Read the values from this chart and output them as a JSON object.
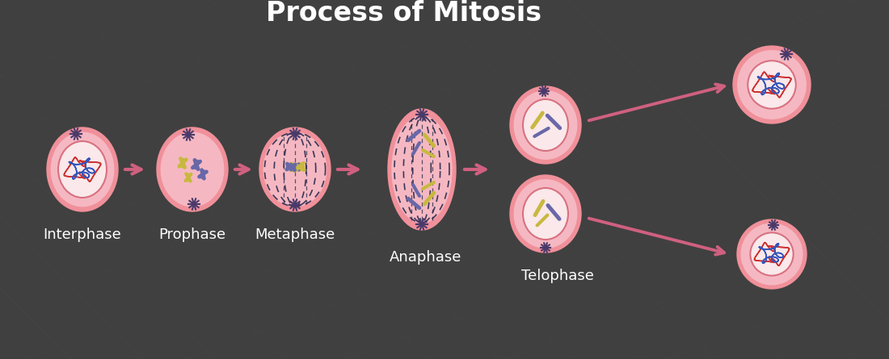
{
  "title": "Process of Mitosis",
  "title_color": "#FFFFFF",
  "title_fontsize": 24,
  "title_fontweight": "bold",
  "background_color": "#404040",
  "stages": [
    "Interphase",
    "Prophase",
    "Metaphase",
    "Anaphase",
    "Telophase"
  ],
  "cell_outer_color": "#f0909a",
  "cell_inner_color": "#f5b8c2",
  "cell_cytoplasm": "#f5b8c2",
  "nucleus_color": "#fae8ea",
  "nucleus_outline": "#d87080",
  "arrow_color": "#d06080",
  "chromosome_purple": "#6868a8",
  "chromosome_yellow": "#c8b840",
  "chromatin_red": "#cc3333",
  "chromatin_blue": "#3355bb",
  "label_color": "#FFFFFF",
  "label_fontsize": 13,
  "centrosome_color": "#4a3a6a",
  "spindle_dashed_color": "#303050"
}
